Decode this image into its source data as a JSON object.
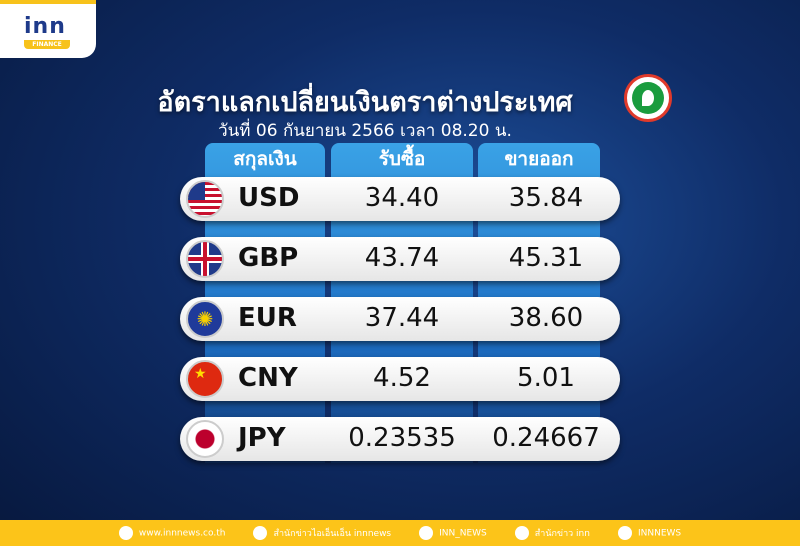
{
  "logo": {
    "brand": "inn",
    "sub": "FINANCE"
  },
  "title": "อัตราแลกเปลี่ยนเงินตราต่างประเทศ",
  "subtitle": "วันที่  06  กันยายน  2566 เวลา  08.20 น.",
  "headers": [
    "สกุลเงิน",
    "รับซื้อ",
    "ขายออก"
  ],
  "rows": [
    {
      "code": "USD",
      "buy": "34.40",
      "sell": "35.84",
      "flag": "us-flag"
    },
    {
      "code": "GBP",
      "buy": "43.74",
      "sell": "45.31",
      "flag": "uk-flag"
    },
    {
      "code": "EUR",
      "buy": "37.44",
      "sell": "38.60",
      "flag": "eu-flag"
    },
    {
      "code": "CNY",
      "buy": "4.52",
      "sell": "5.01",
      "flag": "cn-flag"
    },
    {
      "code": "JPY",
      "buy": "0.23535",
      "sell": "0.24667",
      "flag": "jp-flag"
    }
  ],
  "footer": [
    {
      "icon": "globe-icon",
      "text": "www.innnews.co.th"
    },
    {
      "icon": "facebook-icon",
      "text": "สำนักข่าวไอเอ็นเอ็น innnews"
    },
    {
      "icon": "tiktok-icon",
      "text": "INN_NEWS"
    },
    {
      "icon": "twitter-icon",
      "text": "สำนักข่าว inn"
    },
    {
      "icon": "youtube-icon",
      "text": "INNNEWS"
    }
  ],
  "colors": {
    "accent": "#fcc419",
    "header_blue": "#2f8fdc",
    "background": "#0f2c66"
  }
}
